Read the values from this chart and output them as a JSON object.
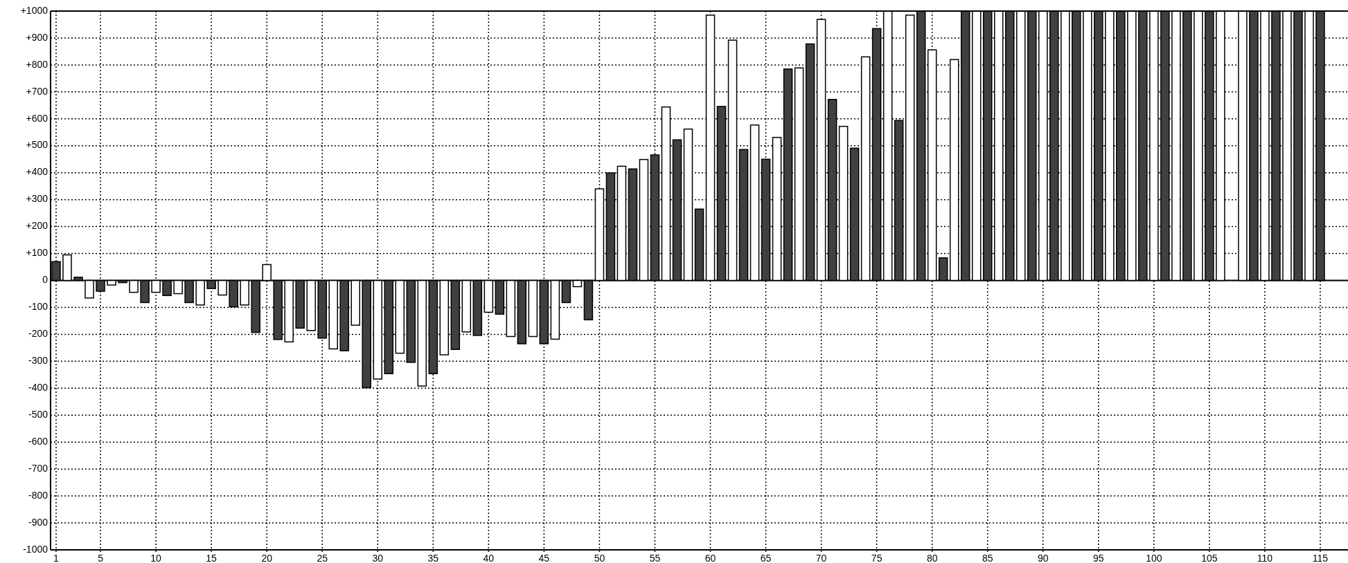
{
  "chart_data": {
    "type": "bar",
    "x": [
      1,
      2,
      3,
      4,
      5,
      6,
      7,
      8,
      9,
      10,
      11,
      12,
      13,
      14,
      15,
      16,
      17,
      18,
      19,
      20,
      21,
      22,
      23,
      24,
      25,
      26,
      27,
      28,
      29,
      30,
      31,
      32,
      33,
      34,
      35,
      36,
      37,
      38,
      39,
      40,
      41,
      42,
      43,
      44,
      45,
      46,
      47,
      48,
      49,
      50,
      51,
      52,
      53,
      54,
      55,
      56,
      57,
      58,
      59,
      60,
      61,
      62,
      63,
      64,
      65,
      66,
      67,
      68,
      69,
      70,
      71,
      72,
      73,
      74,
      75,
      76,
      77,
      78,
      79,
      80,
      81,
      82,
      83,
      84,
      85,
      86,
      87,
      88,
      89,
      90,
      91,
      92,
      93,
      94,
      95,
      96,
      97,
      98,
      99,
      100,
      101,
      102,
      103,
      104,
      105,
      106,
      107,
      108,
      109,
      110,
      111,
      112,
      113,
      114,
      115
    ],
    "values": [
      70,
      95,
      12,
      -65,
      -40,
      -17,
      -8,
      -44,
      -82,
      -44,
      -56,
      -49,
      -82,
      -91,
      -30,
      -54,
      -98,
      -91,
      -193,
      59,
      -219,
      -228,
      -177,
      -186,
      -214,
      -254,
      -261,
      -166,
      -398,
      -366,
      -346,
      -270,
      -304,
      -392,
      -346,
      -276,
      -256,
      -191,
      -204,
      -118,
      -125,
      -208,
      -235,
      -208,
      -235,
      -218,
      -82,
      -23,
      -146,
      340,
      399,
      424,
      414,
      449,
      466,
      644,
      522,
      562,
      265,
      985,
      646,
      892,
      486,
      577,
      450,
      531,
      785,
      789,
      878,
      969,
      672,
      572,
      491,
      830,
      935,
      1000,
      594,
      985,
      1000,
      856,
      84,
      820,
      1000,
      1000,
      1000,
      1000,
      1000,
      1000,
      1000,
      1000,
      1000,
      1000,
      1000,
      1000,
      1000,
      1000,
      1000,
      1000,
      1000,
      1000,
      1000,
      1000,
      1000,
      1000,
      1000,
      1000,
      0,
      1000,
      1000,
      1000,
      1000,
      1000,
      1000,
      1000,
      1000
    ],
    "colors": [
      "#404040",
      "#ffffff",
      "#404040",
      "#ffffff",
      "#404040",
      "#ffffff",
      "#404040",
      "#ffffff",
      "#404040",
      "#ffffff",
      "#404040",
      "#ffffff",
      "#404040",
      "#ffffff",
      "#404040",
      "#ffffff",
      "#404040",
      "#ffffff",
      "#404040",
      "#ffffff",
      "#404040",
      "#ffffff",
      "#404040",
      "#ffffff",
      "#404040",
      "#ffffff",
      "#404040",
      "#ffffff",
      "#404040",
      "#ffffff",
      "#404040",
      "#ffffff",
      "#404040",
      "#ffffff",
      "#404040",
      "#ffffff",
      "#404040",
      "#ffffff",
      "#404040",
      "#ffffff",
      "#404040",
      "#ffffff",
      "#404040",
      "#ffffff",
      "#404040",
      "#ffffff",
      "#404040",
      "#ffffff",
      "#404040",
      "#ffffff",
      "#404040",
      "#ffffff",
      "#404040",
      "#ffffff",
      "#404040",
      "#ffffff",
      "#404040",
      "#ffffff",
      "#404040",
      "#ffffff",
      "#404040",
      "#ffffff",
      "#404040",
      "#ffffff",
      "#404040",
      "#ffffff",
      "#404040",
      "#ffffff",
      "#404040",
      "#ffffff",
      "#404040",
      "#ffffff",
      "#404040",
      "#ffffff",
      "#404040",
      "#ffffff",
      "#404040",
      "#ffffff",
      "#404040",
      "#ffffff",
      "#404040",
      "#ffffff",
      "#404040",
      "#ffffff",
      "#404040",
      "#ffffff",
      "#404040",
      "#ffffff",
      "#404040",
      "#ffffff",
      "#404040",
      "#ffffff",
      "#404040",
      "#ffffff",
      "#404040",
      "#ffffff",
      "#404040",
      "#ffffff",
      "#404040",
      "#ffffff",
      "#404040",
      "#ffffff",
      "#404040",
      "#ffffff",
      "#404040",
      "#ffffff",
      "#404040",
      "#ffffff",
      "#404040",
      "#ffffff",
      "#404040",
      "#ffffff",
      "#404040",
      "#ffffff",
      "#404040"
    ],
    "xlim": [
      0.5,
      117.5
    ],
    "xticks": [
      1,
      5,
      10,
      15,
      20,
      25,
      30,
      35,
      40,
      45,
      50,
      55,
      60,
      65,
      70,
      75,
      80,
      85,
      90,
      95,
      100,
      105,
      110,
      115
    ],
    "ylim": [
      -1000,
      1000
    ],
    "yticks": [
      {
        "value": 1000,
        "label": "+1000"
      },
      {
        "value": 900,
        "label": "+900"
      },
      {
        "value": 800,
        "label": "+800"
      },
      {
        "value": 700,
        "label": "+700"
      },
      {
        "value": 600,
        "label": "+600"
      },
      {
        "value": 500,
        "label": "+500"
      },
      {
        "value": 400,
        "label": "+400"
      },
      {
        "value": 300,
        "label": "+300"
      },
      {
        "value": 200,
        "label": "+200"
      },
      {
        "value": 100,
        "label": "+100"
      },
      0,
      -100,
      -200,
      -300,
      -400,
      -500,
      -600,
      -700,
      -800,
      -900,
      -1000
    ],
    "grid": true
  }
}
